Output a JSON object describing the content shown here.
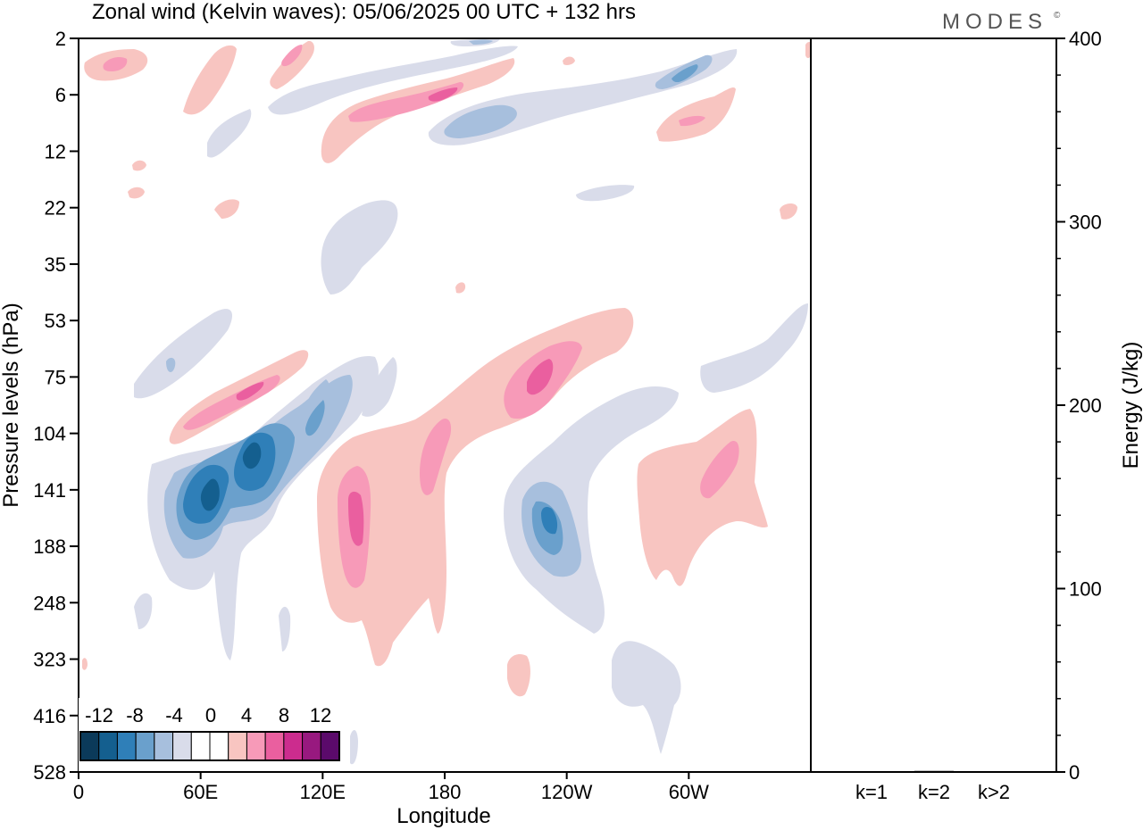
{
  "chart_data": {
    "type": "heatmap",
    "title": "Zonal wind (Kelvin waves):  05/06/2025  00 UTC  + 132 hrs",
    "brand": "MODES",
    "brand_mark": "©",
    "xlabel": "Longitude",
    "ylabel": "Pressure levels (hPa)",
    "x_ticks": [
      "0",
      "60E",
      "120E",
      "180",
      "120W",
      "60W"
    ],
    "y_ticks": [
      "2",
      "6",
      "12",
      "22",
      "35",
      "53",
      "75",
      "104",
      "141",
      "188",
      "248",
      "323",
      "416",
      "528"
    ],
    "colorbar": {
      "labels": [
        "-12",
        "-8",
        "-4",
        "0",
        "4",
        "8",
        "12"
      ],
      "colors": [
        "#0b3a5a",
        "#145f8f",
        "#2f7fb8",
        "#6aa0cc",
        "#a7bfdd",
        "#d9dcea",
        "#ffffff",
        "#ffffff",
        "#f8c5c1",
        "#f79ab8",
        "#ea5f9f",
        "#cc2c8e",
        "#98197f",
        "#5b0a6b"
      ]
    },
    "energy_panel": {
      "ylabel": "Energy (J/kg)",
      "ylim": [
        0,
        400
      ],
      "y_ticks": [
        "0",
        "100",
        "200",
        "300",
        "400"
      ],
      "categories": [
        "k=1",
        "k=2",
        "k>2"
      ],
      "values": [
        0.3,
        0.6,
        0.3
      ]
    },
    "features": [
      {
        "lon": 63,
        "level": 141,
        "u": -11
      },
      {
        "lon": 85,
        "level": 122,
        "u": -11
      },
      {
        "lon": 115,
        "level": 95,
        "u": -6
      },
      {
        "lon": 141,
        "level": 150,
        "u": 8
      },
      {
        "lon": 233,
        "level": 150,
        "u": -7
      },
      {
        "lon": 221,
        "level": 80,
        "u": 8
      },
      {
        "lon": 80,
        "level": 85,
        "u": 7
      },
      {
        "lon": 310,
        "level": 122,
        "u": 6
      },
      {
        "lon": 145,
        "level": 8,
        "u": 6
      },
      {
        "lon": 190,
        "level": 2.5,
        "u": -5
      },
      {
        "lon": 305,
        "level": 4,
        "u": -6
      },
      {
        "lon": 15,
        "level": 4,
        "u": 5
      },
      {
        "lon": 100,
        "level": 3,
        "u": 5
      }
    ]
  }
}
